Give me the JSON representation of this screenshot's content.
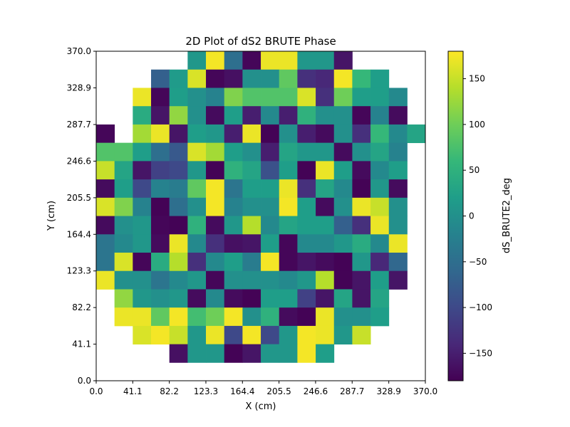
{
  "chart_data": {
    "type": "heatmap",
    "title": "2D Plot of dS2 BRUTE Phase",
    "xlabel": "X (cm)",
    "ylabel": "Y (cm)",
    "xlim": [
      0.0,
      370.0
    ],
    "ylim": [
      0.0,
      370.0
    ],
    "x_ticks": [
      "0.0",
      "41.1",
      "82.2",
      "123.3",
      "164.4",
      "205.5",
      "246.6",
      "287.7",
      "328.9",
      "370.0"
    ],
    "y_ticks": [
      "0.0",
      "41.1",
      "82.2",
      "123.3",
      "164.4",
      "205.5",
      "246.6",
      "287.7",
      "328.9",
      "370.0"
    ],
    "colormap": "viridis",
    "colorbar": {
      "label": "dS_BRUTE2_deg",
      "range": [
        -180,
        180
      ],
      "ticks": [
        "−150",
        "−100",
        "−50",
        "0",
        "50",
        "100",
        "150"
      ],
      "tick_values": [
        -150,
        -100,
        -50,
        0,
        50,
        100,
        150
      ]
    },
    "grid_shape": [
      18,
      18
    ],
    "cell_size_cm": 20.56,
    "rows_top_to_bottom": [
      [
        null,
        null,
        null,
        null,
        null,
        10,
        175,
        -50,
        -175,
        170,
        170,
        10,
        10,
        -160,
        null,
        null,
        null,
        null
      ],
      [
        null,
        null,
        null,
        -70,
        15,
        160,
        -175,
        -165,
        0,
        0,
        90,
        -130,
        -140,
        175,
        60,
        20,
        null,
        null
      ],
      [
        null,
        null,
        170,
        -175,
        20,
        0,
        -20,
        110,
        80,
        80,
        80,
        160,
        -130,
        100,
        20,
        20,
        -10,
        null
      ],
      [
        null,
        null,
        40,
        -160,
        120,
        0,
        -170,
        20,
        -150,
        -10,
        -150,
        50,
        0,
        0,
        -175,
        -20,
        -170,
        null
      ],
      [
        -175,
        null,
        130,
        170,
        -160,
        20,
        10,
        -150,
        170,
        -178,
        0,
        -150,
        -170,
        0,
        -130,
        60,
        -10,
        30
      ],
      [
        80,
        80,
        20,
        -50,
        -80,
        160,
        130,
        20,
        0,
        -150,
        30,
        10,
        10,
        -170,
        0,
        30,
        -20,
        null
      ],
      [
        150,
        30,
        -160,
        -110,
        -100,
        10,
        -178,
        50,
        30,
        -90,
        20,
        -178,
        170,
        20,
        -170,
        -10,
        20,
        null
      ],
      [
        -170,
        20,
        -100,
        -20,
        -30,
        90,
        175,
        -40,
        20,
        20,
        170,
        -130,
        30,
        -10,
        -178,
        10,
        -170,
        null
      ],
      [
        160,
        110,
        -20,
        -178,
        -50,
        0,
        175,
        -20,
        0,
        0,
        175,
        20,
        -170,
        0,
        170,
        150,
        0,
        null
      ],
      [
        -170,
        0,
        10,
        -175,
        -178,
        50,
        -170,
        10,
        140,
        -10,
        30,
        20,
        20,
        -70,
        -130,
        170,
        0,
        null
      ],
      [
        -40,
        -10,
        10,
        -170,
        170,
        -10,
        -130,
        -165,
        -160,
        20,
        -175,
        -10,
        -10,
        10,
        40,
        -10,
        170,
        null
      ],
      [
        -40,
        160,
        -175,
        40,
        140,
        -130,
        -10,
        20,
        -30,
        175,
        -175,
        -160,
        -170,
        -178,
        10,
        -140,
        -60,
        null
      ],
      [
        170,
        0,
        0,
        -40,
        -10,
        10,
        -175,
        0,
        0,
        0,
        -10,
        10,
        140,
        -178,
        -160,
        20,
        -160,
        null
      ],
      [
        null,
        120,
        10,
        0,
        10,
        -170,
        -10,
        -170,
        -178,
        20,
        20,
        -110,
        -160,
        30,
        -160,
        30,
        null,
        null
      ],
      [
        null,
        170,
        170,
        90,
        175,
        70,
        100,
        175,
        0,
        50,
        -170,
        -178,
        170,
        0,
        0,
        20,
        null,
        null
      ],
      [
        null,
        null,
        160,
        175,
        150,
        10,
        170,
        -100,
        175,
        -100,
        10,
        175,
        170,
        10,
        150,
        null,
        null,
        null
      ],
      [
        null,
        null,
        null,
        null,
        -165,
        10,
        10,
        -178,
        -160,
        10,
        10,
        175,
        20,
        null,
        null,
        null,
        null,
        null
      ],
      [
        null,
        null,
        null,
        null,
        null,
        null,
        null,
        null,
        null,
        null,
        null,
        null,
        null,
        null,
        null,
        null,
        null,
        null
      ]
    ]
  }
}
